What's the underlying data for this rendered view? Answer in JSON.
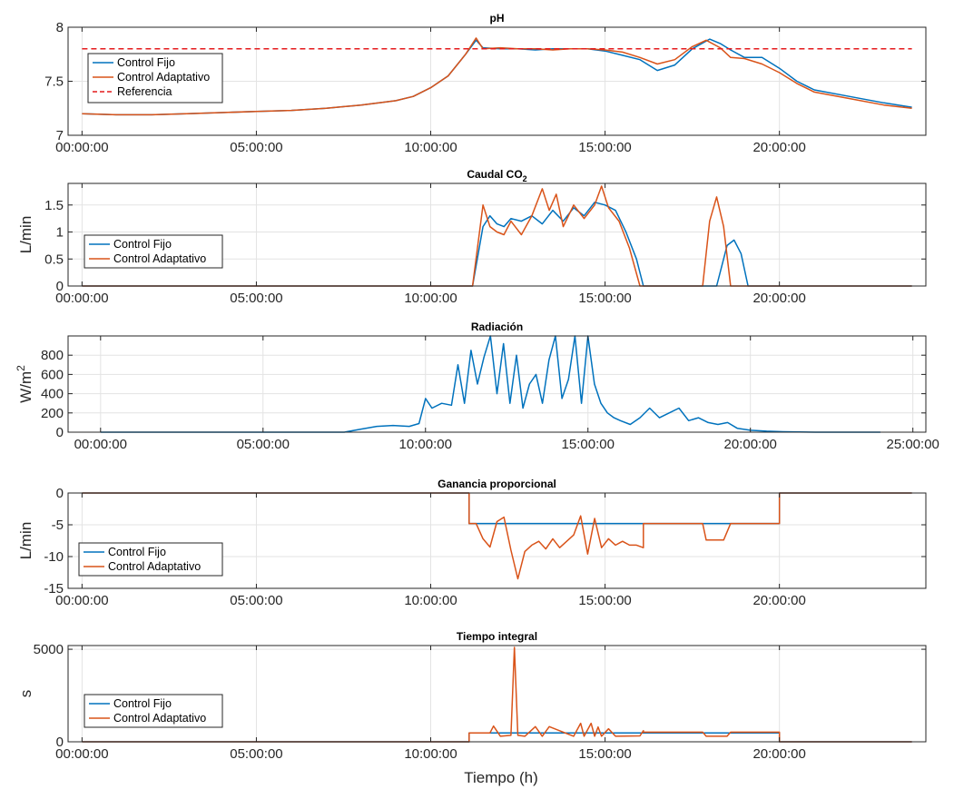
{
  "figure": {
    "xlabel": "Tiempo (h)"
  },
  "chart_data": [
    {
      "type": "line",
      "title": "pH",
      "ylabel": "",
      "ylim": [
        7,
        8
      ],
      "yticks": [
        "7",
        "7.5",
        "8"
      ],
      "yticks_values": [
        7,
        7.5,
        8
      ],
      "xlim_h": [
        -0.4,
        24.2
      ],
      "xticks_h": [
        0,
        5,
        10,
        15,
        20
      ],
      "xtick_labels": [
        "00:00:00",
        "05:00:00",
        "10:00:00",
        "15:00:00",
        "20:00:00"
      ],
      "legend": "left",
      "grid": true,
      "series": [
        {
          "name": "Control Fijo",
          "color": "#0072BD",
          "x": [
            0,
            1,
            2,
            3,
            4,
            5,
            6,
            7,
            8,
            9,
            9.5,
            10,
            10.5,
            11,
            11.3,
            11.5,
            12,
            12.5,
            13,
            13.5,
            14,
            14.5,
            15,
            15.5,
            16,
            16.5,
            17,
            17.5,
            18,
            18.3,
            18.6,
            19,
            19.5,
            20,
            20.5,
            21,
            22,
            23,
            23.8
          ],
          "y": [
            7.2,
            7.19,
            7.19,
            7.2,
            7.21,
            7.22,
            7.23,
            7.25,
            7.28,
            7.32,
            7.36,
            7.44,
            7.55,
            7.75,
            7.88,
            7.81,
            7.8,
            7.8,
            7.79,
            7.8,
            7.8,
            7.8,
            7.78,
            7.74,
            7.7,
            7.6,
            7.65,
            7.8,
            7.89,
            7.85,
            7.79,
            7.72,
            7.72,
            7.62,
            7.5,
            7.42,
            7.36,
            7.3,
            7.26
          ]
        },
        {
          "name": "Control Adaptativo",
          "color": "#D95319",
          "x": [
            0,
            1,
            2,
            3,
            4,
            5,
            6,
            7,
            8,
            9,
            9.5,
            10,
            10.5,
            11,
            11.3,
            11.5,
            12,
            12.5,
            13,
            13.5,
            14,
            14.5,
            15,
            15.5,
            16,
            16.5,
            17,
            17.5,
            17.9,
            18.3,
            18.6,
            19,
            19.5,
            20,
            20.5,
            21,
            22,
            23,
            23.8
          ],
          "y": [
            7.2,
            7.19,
            7.19,
            7.2,
            7.21,
            7.22,
            7.23,
            7.25,
            7.28,
            7.32,
            7.36,
            7.44,
            7.55,
            7.75,
            7.9,
            7.8,
            7.81,
            7.8,
            7.8,
            7.79,
            7.8,
            7.8,
            7.79,
            7.77,
            7.72,
            7.66,
            7.7,
            7.82,
            7.88,
            7.81,
            7.72,
            7.71,
            7.66,
            7.58,
            7.48,
            7.4,
            7.34,
            7.28,
            7.25
          ]
        },
        {
          "name": "Referencia",
          "color": "#E41A1C",
          "dashed": true,
          "x": [
            0,
            23.8
          ],
          "y": [
            7.8,
            7.8
          ]
        }
      ]
    },
    {
      "type": "line",
      "title": "Caudal CO",
      "title_sub": "2",
      "ylabel": "L/min",
      "ylim": [
        0,
        1.9
      ],
      "yticks": [
        "0",
        "0.5",
        "1",
        "1.5"
      ],
      "yticks_values": [
        0,
        0.5,
        1,
        1.5
      ],
      "xlim_h": [
        -0.4,
        24.2
      ],
      "xticks_h": [
        0,
        5,
        10,
        15,
        20
      ],
      "xtick_labels": [
        "00:00:00",
        "05:00:00",
        "10:00:00",
        "15:00:00",
        "20:00:00"
      ],
      "legend": "left",
      "grid": true,
      "series": [
        {
          "name": "Control Fijo",
          "color": "#0072BD",
          "x": [
            0,
            11.2,
            11.5,
            11.7,
            11.9,
            12.1,
            12.3,
            12.6,
            12.9,
            13.2,
            13.5,
            13.8,
            14.1,
            14.4,
            14.7,
            15,
            15.3,
            15.6,
            15.9,
            16.1,
            18.2,
            18.5,
            18.7,
            18.9,
            19.1,
            23.8
          ],
          "y": [
            0,
            0,
            1.1,
            1.3,
            1.15,
            1.1,
            1.25,
            1.2,
            1.3,
            1.15,
            1.4,
            1.2,
            1.45,
            1.3,
            1.55,
            1.5,
            1.4,
            1.0,
            0.5,
            0,
            0,
            0.75,
            0.85,
            0.6,
            0,
            0
          ]
        },
        {
          "name": "Control Adaptativo",
          "color": "#D95319",
          "x": [
            0,
            11.2,
            11.5,
            11.7,
            11.9,
            12.1,
            12.3,
            12.6,
            12.9,
            13.2,
            13.4,
            13.6,
            13.8,
            14.1,
            14.4,
            14.7,
            14.9,
            15.1,
            15.4,
            15.7,
            16,
            17.8,
            18,
            18.2,
            18.4,
            18.6,
            23.8
          ],
          "y": [
            0,
            0,
            1.5,
            1.1,
            1.0,
            0.95,
            1.2,
            0.95,
            1.3,
            1.8,
            1.4,
            1.7,
            1.1,
            1.5,
            1.25,
            1.5,
            1.85,
            1.45,
            1.2,
            0.7,
            0,
            0,
            1.2,
            1.65,
            1.1,
            0,
            0
          ]
        }
      ]
    },
    {
      "type": "line",
      "title": "Radiación",
      "ylabel": "W/m",
      "ylabel_sup": "2",
      "ylim": [
        0,
        1000
      ],
      "yticks": [
        "0",
        "200",
        "400",
        "600",
        "800"
      ],
      "yticks_values": [
        0,
        200,
        400,
        600,
        800
      ],
      "xlim_h": [
        -1,
        25.4
      ],
      "xticks_h": [
        0,
        5,
        10,
        15,
        20,
        25
      ],
      "xtick_labels": [
        "00:00:00",
        "05:00:00",
        "10:00:00",
        "15:00:00",
        "20:00:00",
        "25:00:00"
      ],
      "grid": true,
      "series": [
        {
          "name": "Radiación",
          "color": "#0072BD",
          "x": [
            0,
            7.5,
            8,
            8.5,
            9,
            9.5,
            9.8,
            10,
            10.2,
            10.5,
            10.8,
            11,
            11.2,
            11.4,
            11.6,
            11.8,
            12,
            12.2,
            12.4,
            12.6,
            12.8,
            13,
            13.2,
            13.4,
            13.6,
            13.8,
            14,
            14.2,
            14.4,
            14.6,
            14.8,
            15,
            15.2,
            15.4,
            15.6,
            15.8,
            16,
            16.3,
            16.6,
            16.9,
            17.2,
            17.5,
            17.8,
            18.1,
            18.4,
            18.7,
            19,
            19.3,
            19.6,
            20,
            20.5,
            21,
            22,
            23,
            24
          ],
          "y": [
            0,
            0,
            30,
            60,
            70,
            60,
            90,
            350,
            250,
            300,
            280,
            700,
            300,
            850,
            500,
            780,
            1000,
            400,
            920,
            300,
            800,
            250,
            500,
            600,
            300,
            750,
            1000,
            350,
            550,
            1000,
            300,
            1000,
            500,
            300,
            200,
            150,
            120,
            80,
            150,
            250,
            150,
            200,
            250,
            120,
            150,
            100,
            80,
            100,
            40,
            20,
            10,
            5,
            0,
            0,
            0
          ]
        }
      ]
    },
    {
      "type": "line",
      "title": "Ganancia proporcional",
      "ylabel": "L/min",
      "ylim": [
        -15,
        0
      ],
      "yticks": [
        "-15",
        "-10",
        "-5",
        "0"
      ],
      "yticks_values": [
        -15,
        -10,
        -5,
        0
      ],
      "xlim_h": [
        -0.4,
        24.2
      ],
      "xticks_h": [
        0,
        5,
        10,
        15,
        20
      ],
      "xtick_labels": [
        "00:00:00",
        "05:00:00",
        "10:00:00",
        "15:00:00",
        "20:00:00"
      ],
      "legend": "left",
      "grid": true,
      "series": [
        {
          "name": "Control Fijo",
          "color": "#0072BD",
          "x": [
            0,
            11.1,
            11.1,
            20,
            20,
            23.8
          ],
          "y": [
            0,
            0,
            -4.8,
            -4.8,
            0,
            0
          ]
        },
        {
          "name": "Control Adaptativo",
          "color": "#D95319",
          "x": [
            0,
            11.1,
            11.1,
            11.3,
            11.5,
            11.7,
            11.9,
            12.1,
            12.3,
            12.5,
            12.7,
            12.9,
            13.1,
            13.3,
            13.5,
            13.7,
            13.9,
            14.1,
            14.3,
            14.5,
            14.7,
            14.9,
            15.1,
            15.3,
            15.5,
            15.7,
            15.9,
            16.1,
            16.1,
            17.8,
            17.9,
            18.4,
            18.6,
            18.6,
            20,
            20,
            23.8
          ],
          "y": [
            0,
            0,
            -4.8,
            -4.8,
            -7.2,
            -8.5,
            -4.5,
            -3.8,
            -9,
            -13.5,
            -9.2,
            -8.2,
            -7.6,
            -8.8,
            -7.2,
            -8.6,
            -7.6,
            -6.6,
            -3.6,
            -9.6,
            -4.0,
            -8.6,
            -7.2,
            -8.2,
            -7.6,
            -8.2,
            -8.2,
            -8.6,
            -4.8,
            -4.8,
            -7.4,
            -7.4,
            -4.8,
            -4.8,
            -4.8,
            0,
            0
          ]
        }
      ]
    },
    {
      "type": "line",
      "title": "Tiempo integral",
      "ylabel": "s",
      "ylim": [
        0,
        5200
      ],
      "yticks": [
        "0",
        "5000"
      ],
      "yticks_values": [
        0,
        5000
      ],
      "xlim_h": [
        -0.4,
        24.2
      ],
      "xticks_h": [
        0,
        5,
        10,
        15,
        20
      ],
      "xtick_labels": [
        "00:00:00",
        "05:00:00",
        "10:00:00",
        "15:00:00",
        "20:00:00"
      ],
      "legend": "left",
      "grid": true,
      "series": [
        {
          "name": "Control Fijo",
          "color": "#0072BD",
          "x": [
            0,
            11.1,
            11.1,
            20,
            20,
            23.8
          ],
          "y": [
            0,
            0,
            480,
            480,
            0,
            0
          ]
        },
        {
          "name": "Control Adaptativo",
          "color": "#D95319",
          "x": [
            0,
            11.1,
            11.1,
            11.7,
            11.8,
            12,
            12.3,
            12.4,
            12.5,
            12.7,
            13,
            13.2,
            13.4,
            14.1,
            14.3,
            14.4,
            14.6,
            14.7,
            14.8,
            14.9,
            15.1,
            15.3,
            16,
            16.1,
            16.1,
            17.8,
            17.9,
            18.5,
            18.6,
            20,
            20,
            23.8
          ],
          "y": [
            0,
            0,
            480,
            480,
            850,
            300,
            350,
            5100,
            350,
            300,
            820,
            300,
            820,
            300,
            1000,
            300,
            1000,
            300,
            800,
            300,
            700,
            300,
            320,
            600,
            520,
            520,
            300,
            300,
            520,
            520,
            0,
            0
          ]
        }
      ]
    }
  ]
}
